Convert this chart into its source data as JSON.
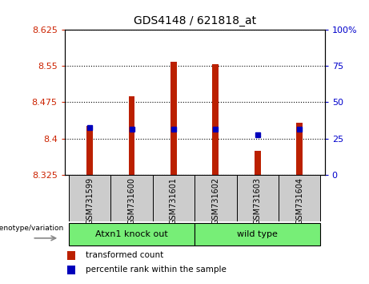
{
  "title": "GDS4148 / 621818_at",
  "samples": [
    "GSM731599",
    "GSM731600",
    "GSM731601",
    "GSM731602",
    "GSM731603",
    "GSM731604"
  ],
  "red_bar_tops": [
    8.426,
    8.487,
    8.558,
    8.553,
    8.375,
    8.432
  ],
  "blue_square_values": [
    8.422,
    8.42,
    8.42,
    8.42,
    8.408,
    8.42
  ],
  "baseline": 8.325,
  "ylim_left": [
    8.325,
    8.625
  ],
  "ylim_right": [
    0,
    100
  ],
  "yticks_left": [
    8.325,
    8.4,
    8.475,
    8.55,
    8.625
  ],
  "ytick_labels_left": [
    "8.325",
    "8.4",
    "8.475",
    "8.55",
    "8.625"
  ],
  "yticks_right": [
    0,
    25,
    50,
    75,
    100
  ],
  "ytick_labels_right": [
    "0",
    "25",
    "50",
    "75",
    "100%"
  ],
  "group_labels": [
    "Atxn1 knock out",
    "wild type"
  ],
  "group_label_text": "genotype/variation",
  "legend_red_label": "transformed count",
  "legend_blue_label": "percentile rank within the sample",
  "bar_color": "#bb2000",
  "blue_color": "#0000bb",
  "bg_color": "#ffffff",
  "plot_bg": "#ffffff",
  "sample_box_color": "#cccccc",
  "group_box_color": "#77ee77",
  "bar_width": 0.15
}
